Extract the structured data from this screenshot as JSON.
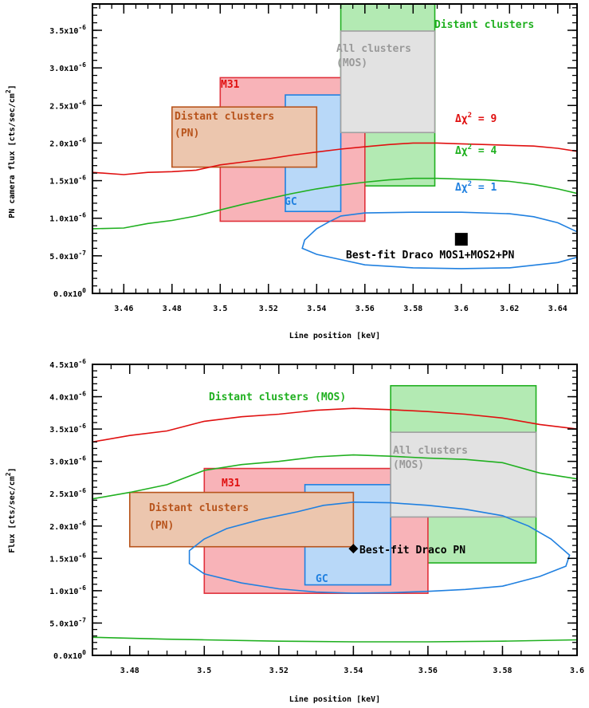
{
  "chart_data": [
    {
      "type": "line",
      "xlabel": "Line position [keV]",
      "ylabel": "PN camera flux [cts/sec/cm",
      "ylabel_sup": "2",
      "ylabel_end": "]",
      "xlim": [
        3.447,
        3.648
      ],
      "ylim": [
        0.0,
        3.85e-06
      ],
      "x_ticks": [
        {
          "v": 3.46,
          "label": "3.46"
        },
        {
          "v": 3.48,
          "label": "3.48"
        },
        {
          "v": 3.5,
          "label": "3.5"
        },
        {
          "v": 3.52,
          "label": "3.52"
        },
        {
          "v": 3.54,
          "label": "3.54"
        },
        {
          "v": 3.56,
          "label": "3.56"
        },
        {
          "v": 3.58,
          "label": "3.58"
        },
        {
          "v": 3.6,
          "label": "3.6"
        },
        {
          "v": 3.62,
          "label": "3.62"
        },
        {
          "v": 3.64,
          "label": "3.64"
        }
      ],
      "y_ticks": [
        {
          "v": 0.0,
          "mant": "0.0x10",
          "exp": "0"
        },
        {
          "v": 5e-07,
          "mant": "5.0x10",
          "exp": "-7"
        },
        {
          "v": 1e-06,
          "mant": "1.0x10",
          "exp": "-6"
        },
        {
          "v": 1.5e-06,
          "mant": "1.5x10",
          "exp": "-6"
        },
        {
          "v": 2e-06,
          "mant": "2.0x10",
          "exp": "-6"
        },
        {
          "v": 2.5e-06,
          "mant": "2.5x10",
          "exp": "-6"
        },
        {
          "v": 3e-06,
          "mant": "3.0x10",
          "exp": "-6"
        },
        {
          "v": 3.5e-06,
          "mant": "3.5x10",
          "exp": "-6"
        }
      ],
      "boxes": [
        {
          "name": "distant-clusters-mos",
          "x": [
            3.55,
            3.589
          ],
          "y": [
            1.43e-06,
            3.85e-06
          ],
          "fill": "#b3eab3",
          "stroke": "#20b020"
        },
        {
          "name": "m31",
          "x": [
            3.5,
            3.56
          ],
          "y": [
            9.6e-07,
            2.87e-06
          ],
          "fill": "#f8b3b8",
          "stroke": "#e0303a"
        },
        {
          "name": "gc",
          "x": [
            3.527,
            3.55
          ],
          "y": [
            1.09e-06,
            2.64e-06
          ],
          "fill": "#b8d8f8",
          "stroke": "#2080e0"
        },
        {
          "name": "all-clusters-mos",
          "x": [
            3.55,
            3.589
          ],
          "y": [
            2.14e-06,
            3.49e-06
          ],
          "fill": "#e2e2e2",
          "stroke": "#a0a0a0"
        },
        {
          "name": "distant-clusters-pn",
          "x": [
            3.48,
            3.54
          ],
          "y": [
            1.68e-06,
            2.48e-06
          ],
          "fill": "#ecc6ae",
          "stroke": "#b8541c"
        }
      ],
      "series": [
        {
          "color": "#e01010",
          "closed": false,
          "points": [
            [
              3.447,
              1.61e-06
            ],
            [
              3.46,
              1.58e-06
            ],
            [
              3.47,
              1.61e-06
            ],
            [
              3.48,
              1.62e-06
            ],
            [
              3.49,
              1.64e-06
            ],
            [
              3.5,
              1.71e-06
            ],
            [
              3.51,
              1.75e-06
            ],
            [
              3.52,
              1.79e-06
            ],
            [
              3.53,
              1.84e-06
            ],
            [
              3.54,
              1.88e-06
            ],
            [
              3.55,
              1.92e-06
            ],
            [
              3.56,
              1.95e-06
            ],
            [
              3.57,
              1.98e-06
            ],
            [
              3.58,
              2e-06
            ],
            [
              3.59,
              2e-06
            ],
            [
              3.6,
              1.99e-06
            ],
            [
              3.61,
              1.98e-06
            ],
            [
              3.62,
              1.97e-06
            ],
            [
              3.63,
              1.96e-06
            ],
            [
              3.64,
              1.93e-06
            ],
            [
              3.648,
              1.89e-06
            ]
          ]
        },
        {
          "color": "#20b020",
          "closed": false,
          "points": [
            [
              3.447,
              8.6e-07
            ],
            [
              3.46,
              8.7e-07
            ],
            [
              3.47,
              9.3e-07
            ],
            [
              3.48,
              9.7e-07
            ],
            [
              3.49,
              1.03e-06
            ],
            [
              3.5,
              1.11e-06
            ],
            [
              3.51,
              1.19e-06
            ],
            [
              3.52,
              1.26e-06
            ],
            [
              3.53,
              1.33e-06
            ],
            [
              3.54,
              1.39e-06
            ],
            [
              3.55,
              1.44e-06
            ],
            [
              3.56,
              1.48e-06
            ],
            [
              3.57,
              1.51e-06
            ],
            [
              3.58,
              1.53e-06
            ],
            [
              3.59,
              1.53e-06
            ],
            [
              3.6,
              1.52e-06
            ],
            [
              3.61,
              1.51e-06
            ],
            [
              3.62,
              1.49e-06
            ],
            [
              3.63,
              1.45e-06
            ],
            [
              3.64,
              1.39e-06
            ],
            [
              3.648,
              1.33e-06
            ]
          ]
        },
        {
          "color": "#2080e0",
          "closed": false,
          "points": [
            [
              3.648,
              8.2e-07
            ],
            [
              3.64,
              9.4e-07
            ],
            [
              3.63,
              1.02e-06
            ],
            [
              3.62,
              1.06e-06
            ],
            [
              3.6,
              1.08e-06
            ],
            [
              3.58,
              1.08e-06
            ],
            [
              3.56,
              1.07e-06
            ],
            [
              3.55,
              1.03e-06
            ],
            [
              3.545,
              9.5e-07
            ],
            [
              3.54,
              8.6e-07
            ],
            [
              3.535,
              7.1e-07
            ],
            [
              3.534,
              6e-07
            ],
            [
              3.54,
              5.2e-07
            ],
            [
              3.55,
              4.5e-07
            ],
            [
              3.56,
              3.8e-07
            ],
            [
              3.58,
              3.4e-07
            ],
            [
              3.6,
              3.3e-07
            ],
            [
              3.62,
              3.4e-07
            ],
            [
              3.64,
              4.1e-07
            ],
            [
              3.648,
              4.8e-07
            ]
          ]
        }
      ],
      "best_fit": {
        "x": 3.6,
        "y": 7.2e-07,
        "label": "Best-fit Draco MOS1+MOS2+PN"
      },
      "labels": {
        "distant_mos": "Distant clusters",
        "all_mos_1": "All clusters",
        "all_mos_2": "(MOS)",
        "m31": "M31",
        "dist_pn_1": "Distant clusters",
        "dist_pn_2": "(PN)",
        "gc": "GC",
        "chi_prefix": "Δχ",
        "chi_sup": "2",
        "chi9": " = 9",
        "chi4": " = 4",
        "chi1": " = 1"
      }
    },
    {
      "type": "line",
      "xlabel": "Line position [keV]",
      "ylabel": "Flux [cts/sec/cm",
      "ylabel_sup": "2",
      "ylabel_end": "]",
      "xlim": [
        3.47,
        3.6
      ],
      "ylim": [
        0.0,
        4.5e-06
      ],
      "x_ticks": [
        {
          "v": 3.48,
          "label": "3.48"
        },
        {
          "v": 3.5,
          "label": "3.5"
        },
        {
          "v": 3.52,
          "label": "3.52"
        },
        {
          "v": 3.54,
          "label": "3.54"
        },
        {
          "v": 3.56,
          "label": "3.56"
        },
        {
          "v": 3.58,
          "label": "3.58"
        },
        {
          "v": 3.6,
          "label": "3.6"
        }
      ],
      "y_ticks": [
        {
          "v": 0.0,
          "mant": "0.0x10",
          "exp": "0"
        },
        {
          "v": 5e-07,
          "mant": "5.0x10",
          "exp": "-7"
        },
        {
          "v": 1e-06,
          "mant": "1.0x10",
          "exp": "-6"
        },
        {
          "v": 1.5e-06,
          "mant": "1.5x10",
          "exp": "-6"
        },
        {
          "v": 2e-06,
          "mant": "2.0x10",
          "exp": "-6"
        },
        {
          "v": 2.5e-06,
          "mant": "2.5x10",
          "exp": "-6"
        },
        {
          "v": 3e-06,
          "mant": "3.0x10",
          "exp": "-6"
        },
        {
          "v": 3.5e-06,
          "mant": "3.5x10",
          "exp": "-6"
        },
        {
          "v": 4e-06,
          "mant": "4.0x10",
          "exp": "-6"
        },
        {
          "v": 4.5e-06,
          "mant": "4.5x10",
          "exp": "-6"
        }
      ],
      "boxes": [
        {
          "name": "distant-clusters-mos",
          "x": [
            3.55,
            3.589
          ],
          "y": [
            1.43e-06,
            4.17e-06
          ],
          "fill": "#b3eab3",
          "stroke": "#20b020"
        },
        {
          "name": "m31",
          "x": [
            3.5,
            3.56
          ],
          "y": [
            9.6e-07,
            2.89e-06
          ],
          "fill": "#f8b3b8",
          "stroke": "#e0303a"
        },
        {
          "name": "gc",
          "x": [
            3.527,
            3.55
          ],
          "y": [
            1.09e-06,
            2.64e-06
          ],
          "fill": "#b8d8f8",
          "stroke": "#2080e0"
        },
        {
          "name": "all-clusters-mos",
          "x": [
            3.55,
            3.589
          ],
          "y": [
            2.14e-06,
            3.45e-06
          ],
          "fill": "#e2e2e2",
          "stroke": "#a0a0a0"
        },
        {
          "name": "distant-clusters-pn",
          "x": [
            3.48,
            3.54
          ],
          "y": [
            1.68e-06,
            2.52e-06
          ],
          "fill": "#ecc6ae",
          "stroke": "#b8541c"
        }
      ],
      "series": [
        {
          "color": "#e01010",
          "closed": false,
          "points": [
            [
              3.47,
              3.3e-06
            ],
            [
              3.48,
              3.4e-06
            ],
            [
              3.49,
              3.47e-06
            ],
            [
              3.5,
              3.62e-06
            ],
            [
              3.51,
              3.69e-06
            ],
            [
              3.52,
              3.73e-06
            ],
            [
              3.53,
              3.79e-06
            ],
            [
              3.54,
              3.82e-06
            ],
            [
              3.55,
              3.8e-06
            ],
            [
              3.56,
              3.77e-06
            ],
            [
              3.57,
              3.73e-06
            ],
            [
              3.58,
              3.67e-06
            ],
            [
              3.59,
              3.57e-06
            ],
            [
              3.6,
              3.5e-06
            ]
          ]
        },
        {
          "color": "#20b020",
          "closed": false,
          "points": [
            [
              3.47,
              2.42e-06
            ],
            [
              3.48,
              2.52e-06
            ],
            [
              3.49,
              2.64e-06
            ],
            [
              3.5,
              2.86e-06
            ],
            [
              3.51,
              2.95e-06
            ],
            [
              3.52,
              3e-06
            ],
            [
              3.53,
              3.07e-06
            ],
            [
              3.54,
              3.1e-06
            ],
            [
              3.55,
              3.08e-06
            ],
            [
              3.56,
              3.05e-06
            ],
            [
              3.57,
              3.03e-06
            ],
            [
              3.58,
              2.98e-06
            ],
            [
              3.59,
              2.82e-06
            ],
            [
              3.6,
              2.73e-06
            ]
          ]
        },
        {
          "color": "#20b020",
          "closed": false,
          "points": [
            [
              3.47,
              2.8e-07
            ],
            [
              3.49,
              2.5e-07
            ],
            [
              3.5,
              2.4e-07
            ],
            [
              3.52,
              2.2e-07
            ],
            [
              3.54,
              2.1e-07
            ],
            [
              3.56,
              2.1e-07
            ],
            [
              3.58,
              2.2e-07
            ],
            [
              3.6,
              2.4e-07
            ]
          ]
        },
        {
          "color": "#2080e0",
          "closed": true,
          "points": [
            [
              3.54,
              2.37e-06
            ],
            [
              3.55,
              2.36e-06
            ],
            [
              3.56,
              2.32e-06
            ],
            [
              3.57,
              2.26e-06
            ],
            [
              3.58,
              2.16e-06
            ],
            [
              3.587,
              2e-06
            ],
            [
              3.593,
              1.8e-06
            ],
            [
              3.598,
              1.55e-06
            ],
            [
              3.597,
              1.38e-06
            ],
            [
              3.59,
              1.22e-06
            ],
            [
              3.58,
              1.07e-06
            ],
            [
              3.57,
              1.02e-06
            ],
            [
              3.56,
              9.9e-07
            ],
            [
              3.55,
              9.7e-07
            ],
            [
              3.54,
              9.6e-07
            ],
            [
              3.53,
              9.8e-07
            ],
            [
              3.52,
              1.03e-06
            ],
            [
              3.51,
              1.12e-06
            ],
            [
              3.5,
              1.26e-06
            ],
            [
              3.496,
              1.42e-06
            ],
            [
              3.496,
              1.62e-06
            ],
            [
              3.5,
              1.8e-06
            ],
            [
              3.506,
              1.96e-06
            ],
            [
              3.515,
              2.1e-06
            ],
            [
              3.525,
              2.22e-06
            ],
            [
              3.532,
              2.32e-06
            ]
          ]
        }
      ],
      "best_fit": {
        "x": 3.54,
        "y": 1.65e-06,
        "label": "Best-fit Draco PN"
      },
      "labels": {
        "distant_mos": "Distant clusters (MOS)",
        "all_mos_1": "All clusters",
        "all_mos_2": "(MOS)",
        "m31": "M31",
        "dist_pn_1": "Distant clusters",
        "dist_pn_2": "(PN)",
        "gc": "GC"
      }
    }
  ]
}
